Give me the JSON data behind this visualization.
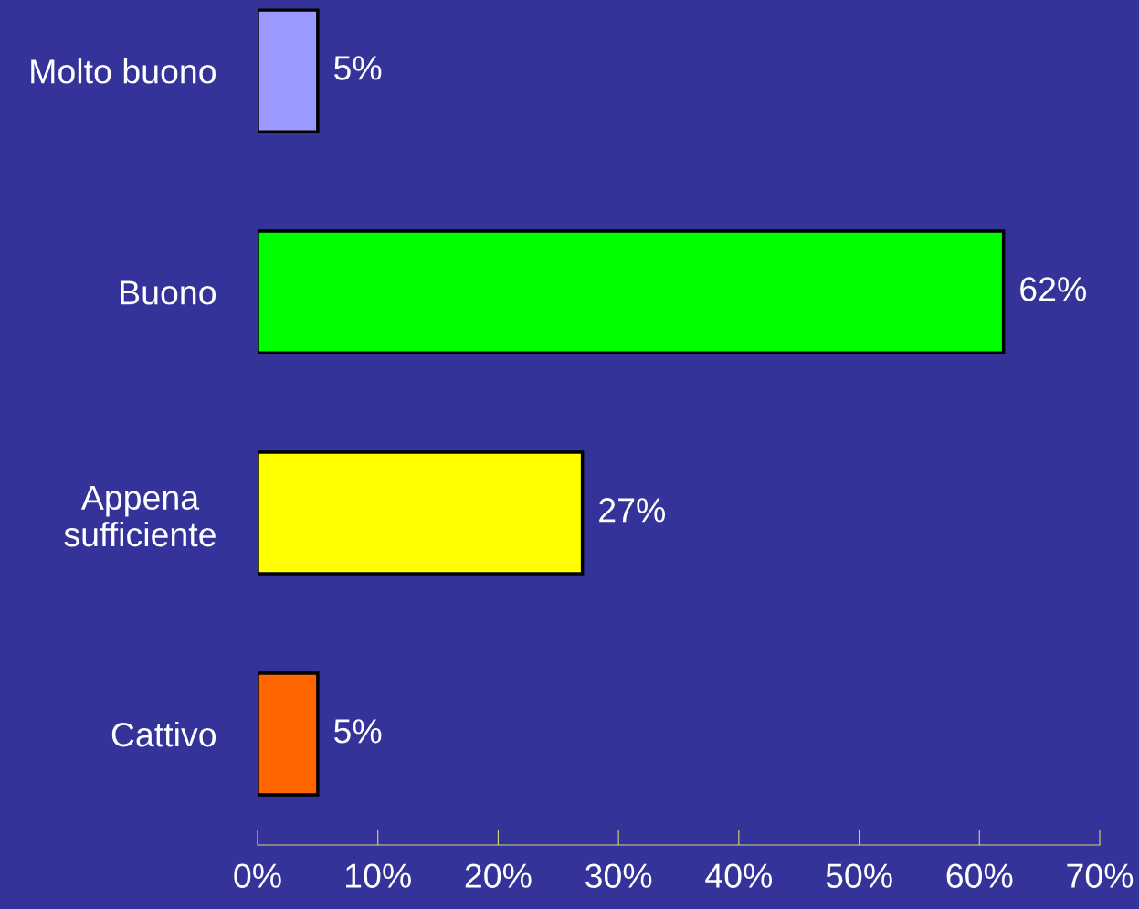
{
  "chart_data": {
    "type": "bar",
    "orientation": "horizontal",
    "categories": [
      "Molto buono",
      "Buono",
      "Appena\nsufficiente",
      "Cattivo"
    ],
    "values": [
      5,
      62,
      27,
      5
    ],
    "colors": [
      "#9999ff",
      "#00ff00",
      "#ffff00",
      "#ff6600"
    ],
    "value_labels": [
      "5%",
      "62%",
      "27%",
      "5%"
    ],
    "xlim": [
      0,
      70
    ],
    "xticks": [
      {
        "value": 0,
        "label": "0%"
      },
      {
        "value": 10,
        "label": "10%"
      },
      {
        "value": 20,
        "label": "20%"
      },
      {
        "value": 30,
        "label": "30%"
      },
      {
        "value": 40,
        "label": "40%"
      },
      {
        "value": 50,
        "label": "50%"
      },
      {
        "value": 60,
        "label": "60%"
      },
      {
        "value": 70,
        "label": "70%"
      }
    ],
    "grid": false,
    "legend": false
  }
}
